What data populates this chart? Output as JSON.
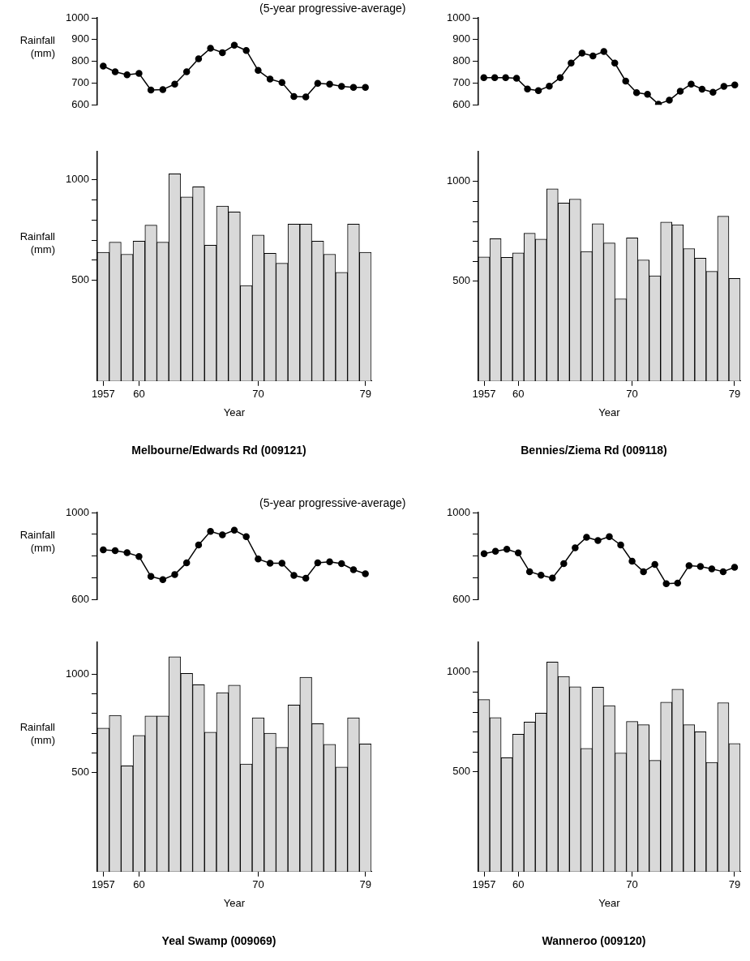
{
  "chart_data": [
    {
      "type": "line",
      "ylabel": "Rainfall (mm)",
      "annotations": [
        "(5-year progressive-average)"
      ],
      "categories": [
        null,
        null,
        null,
        null,
        null,
        null,
        null,
        null,
        null,
        null,
        null,
        null,
        null,
        null,
        null,
        null,
        null,
        null,
        null,
        null,
        null,
        null,
        null
      ],
      "values": [
        778,
        752,
        738,
        744,
        668,
        670,
        695,
        752,
        812,
        860,
        840,
        874,
        850,
        758,
        718,
        702,
        638,
        636,
        699,
        695,
        685,
        680,
        680
      ],
      "color": "#000000",
      "marker": "circle",
      "ylim": [
        600,
        1000
      ],
      "yticks": [
        600,
        700,
        800,
        900,
        1000
      ],
      "tick_labels": "y"
    },
    {
      "type": "line",
      "categories": [
        null,
        null,
        null,
        null,
        null,
        null,
        null,
        null,
        null,
        null,
        null,
        null,
        null,
        null,
        null,
        null,
        null,
        null,
        null,
        null,
        null,
        null,
        null,
        null
      ],
      "values": [
        725,
        725,
        725,
        722,
        673,
        665,
        686,
        725,
        792,
        838,
        825,
        845,
        792,
        709,
        656,
        648,
        603,
        621,
        662,
        695,
        672,
        658,
        685,
        691
      ],
      "color": "#000000",
      "marker": "circle",
      "ylim": [
        600,
        1000
      ],
      "yticks": [
        600,
        700,
        800,
        900,
        1000
      ],
      "tick_labels": "y"
    },
    {
      "type": "bar",
      "title": "Melbourne/Edwards Rd (009121)",
      "xlabel": "Year",
      "ylabel": "Rainfall (mm)",
      "categories": [
        "1957",
        null,
        null,
        "60",
        null,
        null,
        null,
        null,
        null,
        null,
        null,
        null,
        null,
        "70",
        null,
        null,
        null,
        null,
        null,
        null,
        null,
        null,
        "79"
      ],
      "values": [
        640,
        690,
        630,
        695,
        775,
        690,
        1030,
        915,
        965,
        675,
        870,
        840,
        475,
        725,
        635,
        585,
        780,
        780,
        695,
        630,
        540,
        780,
        640
      ],
      "color": "#d9d9d9",
      "ylim": [
        0,
        1140
      ],
      "yticks": [
        500,
        {
          "value": 600,
          "label": null
        },
        {
          "value": 700,
          "label": null
        },
        {
          "value": 800,
          "label": null
        },
        {
          "value": 900,
          "label": null
        },
        1000
      ]
    },
    {
      "type": "bar",
      "title": "Bennies/Ziema Rd (009118)",
      "xlabel": "Year",
      "categories": [
        "1957",
        null,
        null,
        "60",
        null,
        null,
        null,
        null,
        null,
        null,
        null,
        null,
        null,
        "70",
        null,
        null,
        null,
        null,
        null,
        null,
        null,
        null,
        "79"
      ],
      "values": [
        622,
        714,
        620,
        642,
        741,
        712,
        964,
        892,
        912,
        649,
        789,
        692,
        412,
        718,
        607,
        528,
        797,
        784,
        664,
        616,
        550,
        826,
        514
      ],
      "color": "#d9d9d9",
      "ylim": [
        0,
        1150
      ],
      "yticks": [
        500,
        {
          "value": 600,
          "label": null
        },
        {
          "value": 700,
          "label": null
        },
        {
          "value": 800,
          "label": null
        },
        {
          "value": 900,
          "label": null
        },
        1000
      ]
    },
    {
      "type": "line",
      "ylabel": "Rainfall (mm)",
      "annotations": [
        "(5-year progressive-average)"
      ],
      "categories": [
        null,
        null,
        null,
        null,
        null,
        null,
        null,
        null,
        null,
        null,
        null,
        null,
        null,
        null,
        null,
        null,
        null,
        null,
        null,
        null,
        null,
        null,
        null
      ],
      "values": [
        828,
        825,
        815,
        798,
        706,
        691,
        715,
        769,
        851,
        913,
        897,
        919,
        889,
        786,
        767,
        767,
        711,
        698,
        769,
        773,
        765,
        737,
        718
      ],
      "color": "#000000",
      "marker": "circle",
      "ylim": [
        600,
        1000
      ],
      "yticks": [
        600,
        {
          "value": 700,
          "label": null
        },
        {
          "value": 800,
          "label": null
        },
        {
          "value": 900,
          "label": null
        },
        1000
      ],
      "tick_labels": "y"
    },
    {
      "type": "line",
      "categories": [
        null,
        null,
        null,
        null,
        null,
        null,
        null,
        null,
        null,
        null,
        null,
        null,
        null,
        null,
        null,
        null,
        null,
        null,
        null,
        null,
        null,
        null,
        null
      ],
      "values": [
        811,
        822,
        831,
        814,
        728,
        712,
        699,
        765,
        838,
        886,
        871,
        889,
        851,
        776,
        728,
        761,
        673,
        675,
        756,
        752,
        741,
        728,
        748
      ],
      "color": "#000000",
      "marker": "circle",
      "ylim": [
        600,
        1000
      ],
      "yticks": [
        600,
        {
          "value": 700,
          "label": null
        },
        {
          "value": 800,
          "label": null
        },
        {
          "value": 900,
          "label": null
        },
        1000
      ],
      "tick_labels": "y"
    },
    {
      "type": "bar",
      "title": "Yeal Swamp (009069)",
      "xlabel": "Year",
      "ylabel": "Rainfall (mm)",
      "categories": [
        "1957",
        null,
        null,
        "60",
        null,
        null,
        null,
        null,
        null,
        null,
        null,
        null,
        null,
        "70",
        null,
        null,
        null,
        null,
        null,
        null,
        null,
        null,
        "79"
      ],
      "values": [
        726,
        791,
        535,
        689,
        787,
        787,
        1087,
        1003,
        945,
        705,
        905,
        943,
        544,
        778,
        700,
        628,
        843,
        983,
        748,
        644,
        529,
        778,
        646
      ],
      "color": "#d9d9d9",
      "ylim": [
        0,
        1160
      ],
      "yticks": [
        500,
        {
          "value": 600,
          "label": null
        },
        {
          "value": 700,
          "label": null
        },
        {
          "value": 800,
          "label": null
        },
        {
          "value": 900,
          "label": null
        },
        1000
      ]
    },
    {
      "type": "bar",
      "title": "Wanneroo (009120)",
      "xlabel": "Year",
      "categories": [
        "1957",
        null,
        null,
        "60",
        null,
        null,
        null,
        null,
        null,
        null,
        null,
        null,
        null,
        "70",
        null,
        null,
        null,
        null,
        null,
        null,
        null,
        null,
        "79"
      ],
      "values": [
        863,
        773,
        571,
        689,
        750,
        795,
        1051,
        979,
        927,
        618,
        925,
        832,
        595,
        753,
        737,
        558,
        850,
        915,
        737,
        701,
        548,
        847,
        642
      ],
      "color": "#d9d9d9",
      "ylim": [
        0,
        1150
      ],
      "yticks": [
        500,
        {
          "value": 600,
          "label": null
        },
        {
          "value": 700,
          "label": null
        },
        {
          "value": 800,
          "label": null
        },
        {
          "value": 900,
          "label": null
        },
        1000
      ]
    }
  ]
}
